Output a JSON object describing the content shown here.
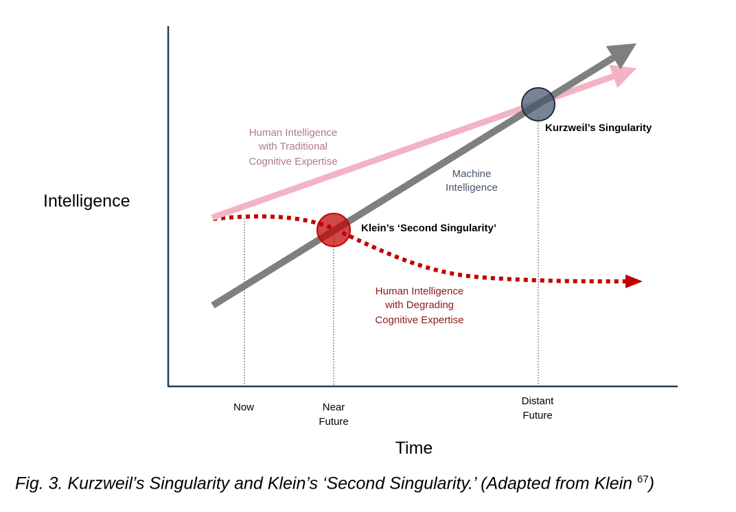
{
  "axes": {
    "y_label": "Intelligence",
    "x_label": "Time",
    "ticks": [
      {
        "line1": "Now",
        "line2": ""
      },
      {
        "line1": "Near",
        "line2": "Future"
      },
      {
        "line1": "Distant",
        "line2": "Future"
      }
    ]
  },
  "series": {
    "traditional": {
      "line1": "Human Intelligence",
      "line2": "with Traditional",
      "line3": "Cognitive Expertise",
      "color": "#f2b4c3"
    },
    "machine": {
      "line1": "Machine",
      "line2": "Intelligence",
      "color": "#7f7f7f"
    },
    "degrading": {
      "line1": "Human Intelligence",
      "line2": "with Degrading",
      "line3": "Cognitive Expertise",
      "color": "#c00000"
    }
  },
  "markers": {
    "kurzweil": {
      "label": "Kurzweil’s Singularity"
    },
    "klein": {
      "label": "Klein’s ‘Second Singularity’"
    }
  },
  "caption": {
    "text": "Fig. 3. Kurzweil’s Singularity and Klein’s ‘Second Singularity.’ (Adapted from Klein ",
    "ref": "67",
    "close": ")"
  }
}
